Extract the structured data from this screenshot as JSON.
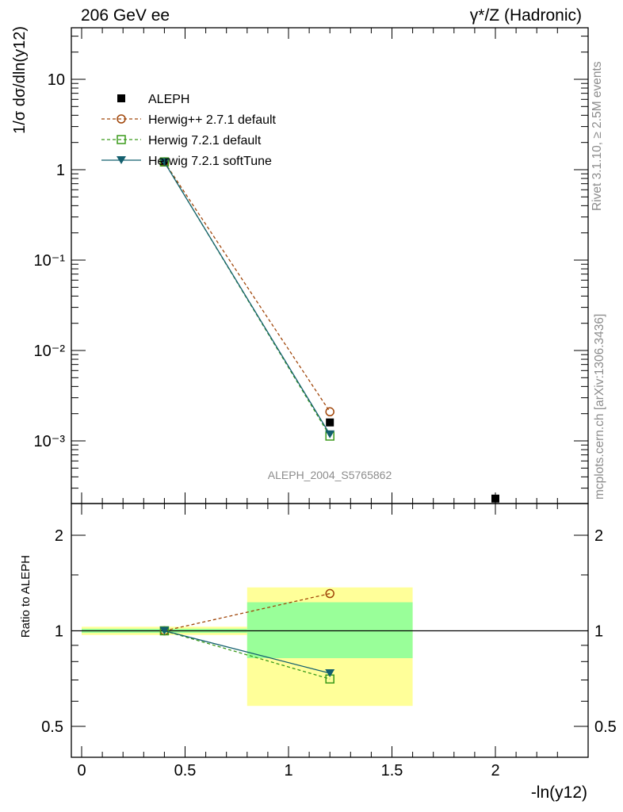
{
  "header": {
    "left": "206 GeV ee",
    "right": "γ*/Z (Hadronic)"
  },
  "side_labels": {
    "rivet": "Rivet 3.1.10, ≥ 2.5M events",
    "mcplots": "mcplots.cern.ch [arXiv:1306.3436]"
  },
  "analysis_label": "ALEPH_2004_S5765862",
  "colors": {
    "data": "#000000",
    "herwigpp": "#a0460a",
    "herwig7_default": "#3a9a1a",
    "herwig7_softtune": "#135f6e",
    "band_inner": "#99ff99",
    "band_outer": "#ffff99",
    "analysis_label": "#8c8c8c"
  },
  "chart_data": [
    {
      "type": "line",
      "panel": "main",
      "ylabel": "1/σ dσ/dln(y12)",
      "yscale": "log",
      "ylim": [
        0.00023,
        35
      ],
      "xlim": [
        -0.05,
        2.45
      ],
      "y_ticks": [
        "10⁻³",
        "10⁻²",
        "10⁻¹",
        "1",
        "10"
      ],
      "legend_position": "top-left",
      "series": [
        {
          "name": "ALEPH",
          "style": "data",
          "marker": "filled-square",
          "x": [
            0.4,
            1.2,
            2.0
          ],
          "y": [
            1.2,
            0.0016,
            0.00023
          ]
        },
        {
          "name": "Herwig++ 2.7.1 default",
          "style": "dashed",
          "marker": "open-circle",
          "color_key": "herwigpp",
          "x": [
            0.4,
            1.2
          ],
          "y": [
            1.22,
            0.0021
          ]
        },
        {
          "name": "Herwig 7.2.1 default",
          "style": "dashed",
          "marker": "open-square",
          "color_key": "herwig7_default",
          "x": [
            0.4,
            1.2
          ],
          "y": [
            1.22,
            0.00113
          ]
        },
        {
          "name": "Herwig 7.2.1 softTune",
          "style": "solid",
          "marker": "filled-triangle-down",
          "color_key": "herwig7_softtune",
          "x": [
            0.4,
            1.2
          ],
          "y": [
            1.21,
            0.00118
          ]
        }
      ]
    },
    {
      "type": "line",
      "panel": "ratio",
      "xlabel": "-ln(y12)",
      "ylabel": "Ratio to ALEPH",
      "yscale": "log",
      "ylim": [
        0.45,
        2.3
      ],
      "x_ticks": [
        "0",
        "0.5",
        "1",
        "1.5",
        "2"
      ],
      "y_ticks": [
        "0.5",
        "1",
        "2"
      ],
      "bands": [
        {
          "x": [
            0.0,
            0.8
          ],
          "inner": [
            0.985,
            1.015
          ],
          "outer": [
            0.97,
            1.03
          ]
        },
        {
          "x": [
            0.8,
            1.6
          ],
          "inner": [
            0.82,
            1.23
          ],
          "outer": [
            0.58,
            1.37
          ]
        }
      ],
      "series": [
        {
          "name": "Herwig++ 2.7.1 default",
          "color_key": "herwigpp",
          "marker": "open-circle",
          "style": "dashed",
          "x": [
            0.4,
            1.2
          ],
          "y": [
            1.0,
            1.31
          ]
        },
        {
          "name": "Herwig 7.2.1 default",
          "color_key": "herwig7_default",
          "marker": "open-square",
          "style": "dashed",
          "x": [
            0.4,
            1.2
          ],
          "y": [
            1.0,
            0.705
          ]
        },
        {
          "name": "Herwig 7.2.1 softTune",
          "color_key": "herwig7_softtune",
          "marker": "filled-triangle-down",
          "style": "solid",
          "x": [
            0.4,
            1.2
          ],
          "y": [
            1.0,
            0.735
          ]
        }
      ]
    }
  ]
}
